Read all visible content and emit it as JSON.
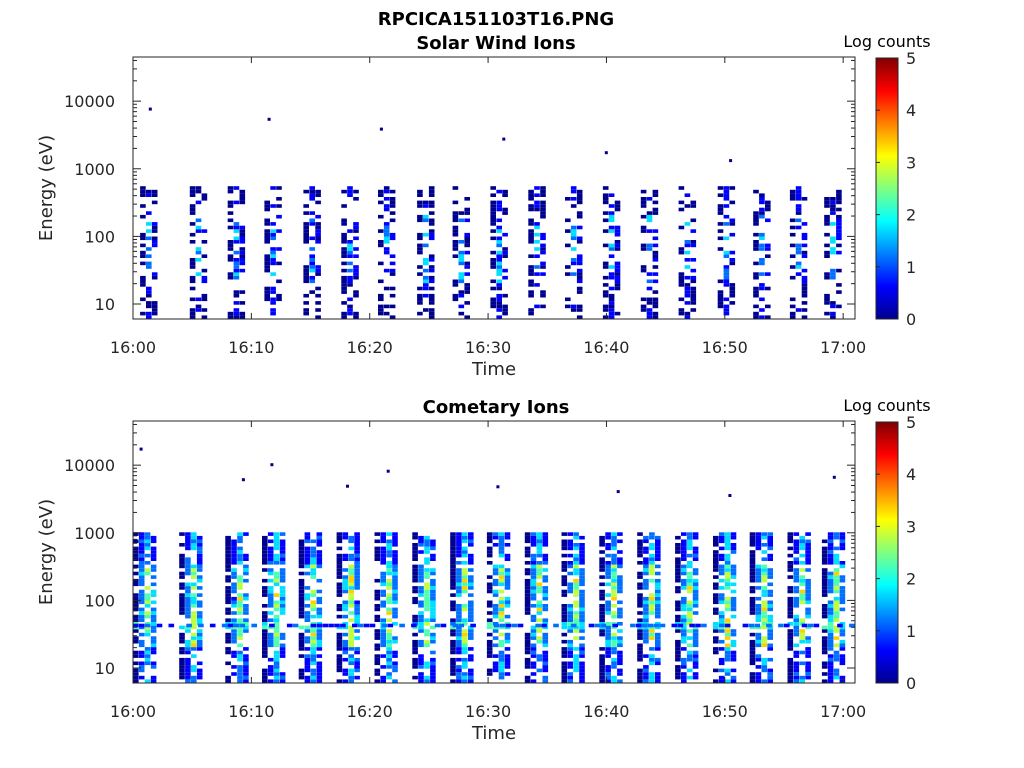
{
  "figure": {
    "title": "RPCICA151103T16.PNG"
  },
  "colormap": [
    "#00008f",
    "#0000ff",
    "#006fff",
    "#00dfff",
    "#4fffaf",
    "#bfff3f",
    "#ffcf00",
    "#ff6000",
    "#ef0000",
    "#800000"
  ],
  "chart_data": [
    {
      "type": "heatmap",
      "title": "Solar Wind Ions",
      "xlabel": "Time",
      "ylabel": "Energy (eV)",
      "x_range": [
        "16:00",
        "17:01"
      ],
      "x_ticks": [
        "16:00",
        "16:10",
        "16:20",
        "16:30",
        "16:40",
        "16:50",
        "17:00"
      ],
      "y_scale": "log",
      "y_range": [
        6,
        45000
      ],
      "y_ticks": [
        "10",
        "100",
        "1000",
        "10000"
      ],
      "colorbar": {
        "label": "Log counts",
        "range": [
          0,
          5
        ],
        "ticks": [
          "0",
          "1",
          "2",
          "3",
          "4",
          "5"
        ]
      },
      "pulse_minutes": [
        1.2,
        5.4,
        8.6,
        11.7,
        15.0,
        18.2,
        21.3,
        24.6,
        27.6,
        30.8,
        34.0,
        37.1,
        40.3,
        43.5,
        46.7,
        50.0,
        53.0,
        56.1,
        59.0
      ],
      "typical_energy_eV": [
        10,
        400
      ],
      "peak_log_counts": 2.1,
      "isolated_high_energy_eV": [
        7500,
        5300,
        3800,
        2700,
        1700,
        1300
      ]
    },
    {
      "type": "heatmap",
      "title": "Cometary Ions",
      "xlabel": "Time",
      "ylabel": "Energy (eV)",
      "x_range": [
        "16:00",
        "17:01"
      ],
      "x_ticks": [
        "16:00",
        "16:10",
        "16:20",
        "16:30",
        "16:40",
        "16:50",
        "17:00"
      ],
      "y_scale": "log",
      "y_range": [
        6,
        45000
      ],
      "y_ticks": [
        "10",
        "100",
        "1000",
        "10000"
      ],
      "colorbar": {
        "label": "Log counts",
        "range": [
          0,
          5
        ],
        "ticks": [
          "0",
          "1",
          "2",
          "3",
          "4",
          "5"
        ]
      },
      "pulse_minutes": [
        1.0,
        4.9,
        8.8,
        11.9,
        15.0,
        18.2,
        21.4,
        24.6,
        27.8,
        30.9,
        34.1,
        37.2,
        40.4,
        43.6,
        46.8,
        50.0,
        53.1,
        56.3,
        59.2
      ],
      "typical_energy_eV": [
        6,
        800
      ],
      "peak_log_counts": 2.9,
      "band_energy_eV": 40,
      "isolated_high_energy_eV": [
        17000,
        10000,
        8000,
        4700,
        4000,
        3500,
        6500,
        6000,
        4800
      ]
    }
  ]
}
